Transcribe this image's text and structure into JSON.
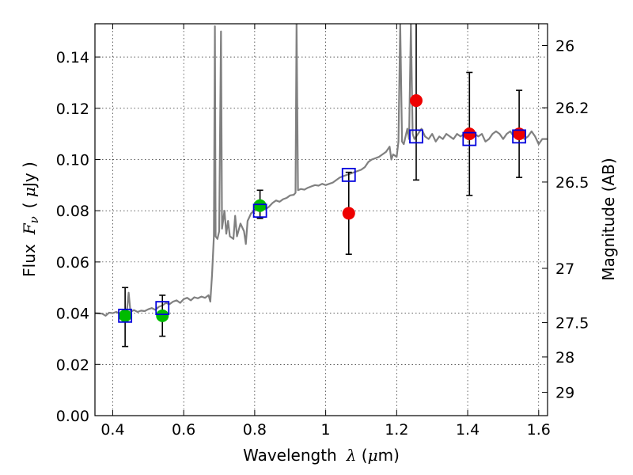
{
  "chart_data": {
    "type": "scatter",
    "title": "",
    "xlabel": {
      "prefix": "Wavelength",
      "symbol": "λ",
      "unit_open": " (",
      "unit_mu": "μ",
      "unit_rest": "m)"
    },
    "ylabel": {
      "prefix": "Flux",
      "symbol": "F",
      "subscript": "ν",
      "unit_open": "( ",
      "unit_mu": "μ",
      "unit_rest": "Jy )"
    },
    "y2label": "Magnitude (AB)",
    "xlim": [
      0.35,
      1.625
    ],
    "ylim": [
      0.0,
      0.153
    ],
    "grid": true,
    "x_ticks": [
      {
        "v": 0.4,
        "label": "0.4"
      },
      {
        "v": 0.6,
        "label": "0.6"
      },
      {
        "v": 0.8,
        "label": "0.8"
      },
      {
        "v": 1.0,
        "label": "1"
      },
      {
        "v": 1.2,
        "label": "1.2"
      },
      {
        "v": 1.4,
        "label": "1.4"
      },
      {
        "v": 1.6,
        "label": "1.6"
      }
    ],
    "y_ticks": [
      {
        "v": 0.0,
        "label": "0.00"
      },
      {
        "v": 0.02,
        "label": "0.02"
      },
      {
        "v": 0.04,
        "label": "0.04"
      },
      {
        "v": 0.06,
        "label": "0.06"
      },
      {
        "v": 0.08,
        "label": "0.08"
      },
      {
        "v": 0.1,
        "label": "0.10"
      },
      {
        "v": 0.12,
        "label": "0.12"
      },
      {
        "v": 0.14,
        "label": "0.14"
      }
    ],
    "y2_ticks": [
      {
        "flux": 0.1445,
        "label": "26"
      },
      {
        "flux": 0.1202,
        "label": "26.2"
      },
      {
        "flux": 0.0912,
        "label": "26.5"
      },
      {
        "flux": 0.0575,
        "label": "27"
      },
      {
        "flux": 0.0363,
        "label": "27.5"
      },
      {
        "flux": 0.0229,
        "label": "28"
      },
      {
        "flux": 0.0091,
        "label": "29"
      }
    ],
    "model_spectrum": {
      "color": "#808080",
      "points": [
        [
          0.35,
          0.04
        ],
        [
          0.37,
          0.0398
        ],
        [
          0.38,
          0.039
        ],
        [
          0.39,
          0.0402
        ],
        [
          0.4,
          0.04
        ],
        [
          0.41,
          0.0405
        ],
        [
          0.42,
          0.0398
        ],
        [
          0.43,
          0.0403
        ],
        [
          0.44,
          0.0408
        ],
        [
          0.445,
          0.048
        ],
        [
          0.45,
          0.0405
        ],
        [
          0.46,
          0.0412
        ],
        [
          0.47,
          0.0405
        ],
        [
          0.48,
          0.041
        ],
        [
          0.49,
          0.0408
        ],
        [
          0.5,
          0.0415
        ],
        [
          0.51,
          0.042
        ],
        [
          0.52,
          0.0413
        ],
        [
          0.53,
          0.0425
        ],
        [
          0.54,
          0.043
        ],
        [
          0.55,
          0.044
        ],
        [
          0.56,
          0.0435
        ],
        [
          0.57,
          0.0445
        ],
        [
          0.58,
          0.045
        ],
        [
          0.59,
          0.044
        ],
        [
          0.6,
          0.0455
        ],
        [
          0.61,
          0.046
        ],
        [
          0.62,
          0.045
        ],
        [
          0.63,
          0.0462
        ],
        [
          0.64,
          0.0458
        ],
        [
          0.65,
          0.0465
        ],
        [
          0.66,
          0.046
        ],
        [
          0.67,
          0.047
        ],
        [
          0.675,
          0.0445
        ],
        [
          0.68,
          0.055
        ],
        [
          0.685,
          0.07
        ],
        [
          0.688,
          0.152
        ],
        [
          0.69,
          0.07
        ],
        [
          0.695,
          0.069
        ],
        [
          0.7,
          0.072
        ],
        [
          0.705,
          0.15
        ],
        [
          0.708,
          0.073
        ],
        [
          0.715,
          0.08
        ],
        [
          0.72,
          0.071
        ],
        [
          0.725,
          0.076
        ],
        [
          0.73,
          0.07
        ],
        [
          0.74,
          0.069
        ],
        [
          0.745,
          0.078
        ],
        [
          0.75,
          0.07
        ],
        [
          0.76,
          0.075
        ],
        [
          0.77,
          0.072
        ],
        [
          0.775,
          0.067
        ],
        [
          0.78,
          0.076
        ],
        [
          0.79,
          0.079
        ],
        [
          0.8,
          0.08
        ],
        [
          0.81,
          0.081
        ],
        [
          0.82,
          0.082
        ],
        [
          0.83,
          0.0805
        ],
        [
          0.84,
          0.0815
        ],
        [
          0.85,
          0.083
        ],
        [
          0.86,
          0.084
        ],
        [
          0.87,
          0.0835
        ],
        [
          0.88,
          0.0845
        ],
        [
          0.89,
          0.085
        ],
        [
          0.9,
          0.086
        ],
        [
          0.91,
          0.0862
        ],
        [
          0.915,
          0.087
        ],
        [
          0.918,
          0.153
        ],
        [
          0.922,
          0.088
        ],
        [
          0.93,
          0.0885
        ],
        [
          0.94,
          0.0882
        ],
        [
          0.95,
          0.089
        ],
        [
          0.96,
          0.0895
        ],
        [
          0.97,
          0.09
        ],
        [
          0.98,
          0.0898
        ],
        [
          0.99,
          0.0905
        ],
        [
          1.0,
          0.09
        ],
        [
          1.01,
          0.0905
        ],
        [
          1.02,
          0.091
        ],
        [
          1.03,
          0.092
        ],
        [
          1.04,
          0.093
        ],
        [
          1.05,
          0.0935
        ],
        [
          1.06,
          0.094
        ],
        [
          1.07,
          0.0945
        ],
        [
          1.08,
          0.095
        ],
        [
          1.09,
          0.0955
        ],
        [
          1.1,
          0.096
        ],
        [
          1.11,
          0.097
        ],
        [
          1.12,
          0.099
        ],
        [
          1.13,
          0.1
        ],
        [
          1.14,
          0.1005
        ],
        [
          1.15,
          0.101
        ],
        [
          1.16,
          0.102
        ],
        [
          1.17,
          0.103
        ],
        [
          1.18,
          0.105
        ],
        [
          1.185,
          0.1
        ],
        [
          1.19,
          0.102
        ],
        [
          1.2,
          0.101
        ],
        [
          1.205,
          0.107
        ],
        [
          1.21,
          0.153
        ],
        [
          1.215,
          0.107
        ],
        [
          1.22,
          0.106
        ],
        [
          1.23,
          0.112
        ],
        [
          1.235,
          0.108
        ],
        [
          1.24,
          0.153
        ],
        [
          1.245,
          0.11
        ],
        [
          1.25,
          0.108
        ],
        [
          1.26,
          0.11
        ],
        [
          1.27,
          0.112
        ],
        [
          1.28,
          0.109
        ],
        [
          1.29,
          0.108
        ],
        [
          1.3,
          0.11
        ],
        [
          1.31,
          0.107
        ],
        [
          1.32,
          0.109
        ],
        [
          1.33,
          0.108
        ],
        [
          1.34,
          0.11
        ],
        [
          1.35,
          0.109
        ],
        [
          1.36,
          0.108
        ],
        [
          1.37,
          0.11
        ],
        [
          1.38,
          0.109
        ],
        [
          1.39,
          0.11
        ],
        [
          1.4,
          0.108
        ],
        [
          1.41,
          0.109
        ],
        [
          1.42,
          0.11
        ],
        [
          1.43,
          0.109
        ],
        [
          1.44,
          0.11
        ],
        [
          1.45,
          0.107
        ],
        [
          1.46,
          0.108
        ],
        [
          1.47,
          0.11
        ],
        [
          1.48,
          0.111
        ],
        [
          1.49,
          0.11
        ],
        [
          1.5,
          0.108
        ],
        [
          1.51,
          0.11
        ],
        [
          1.52,
          0.111
        ],
        [
          1.53,
          0.109
        ],
        [
          1.54,
          0.111
        ],
        [
          1.55,
          0.11
        ],
        [
          1.56,
          0.108
        ],
        [
          1.57,
          0.109
        ],
        [
          1.58,
          0.111
        ],
        [
          1.59,
          0.109
        ],
        [
          1.6,
          0.106
        ],
        [
          1.61,
          0.108
        ],
        [
          1.625,
          0.108
        ]
      ]
    },
    "series": [
      {
        "color": "#00bb00",
        "marker": "circle",
        "points": [
          {
            "x": 0.435,
            "y": 0.039,
            "err_low": 0.027,
            "err_high": 0.05
          },
          {
            "x": 0.54,
            "y": 0.039,
            "err_low": 0.031,
            "err_high": 0.047
          },
          {
            "x": 0.815,
            "y": 0.082,
            "err_low": 0.077,
            "err_high": 0.088
          }
        ]
      },
      {
        "color": "#ee0000",
        "marker": "circle",
        "points": [
          {
            "x": 1.065,
            "y": 0.079,
            "err_low": 0.063,
            "err_high": 0.095
          },
          {
            "x": 1.255,
            "y": 0.123,
            "err_low": 0.092,
            "err_high": 0.16
          },
          {
            "x": 1.405,
            "y": 0.11,
            "err_low": 0.086,
            "err_high": 0.134
          },
          {
            "x": 1.545,
            "y": 0.11,
            "err_low": 0.093,
            "err_high": 0.127
          }
        ]
      },
      {
        "color": "#0000dd",
        "marker": "open-square",
        "points": [
          {
            "x": 0.435,
            "y": 0.039
          },
          {
            "x": 0.54,
            "y": 0.042
          },
          {
            "x": 0.815,
            "y": 0.08
          },
          {
            "x": 1.065,
            "y": 0.094
          },
          {
            "x": 1.255,
            "y": 0.109
          },
          {
            "x": 1.405,
            "y": 0.108
          },
          {
            "x": 1.545,
            "y": 0.109
          }
        ]
      }
    ]
  }
}
